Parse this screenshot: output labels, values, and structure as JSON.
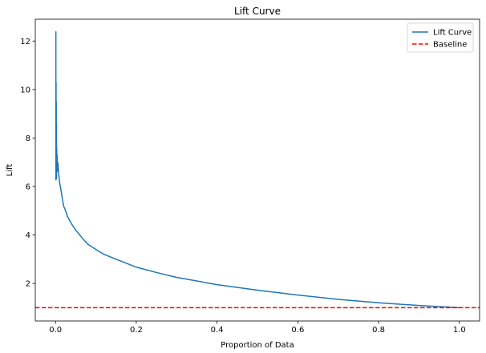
{
  "chart_data": {
    "type": "line",
    "title": "Lift Curve",
    "xlabel": "Proportion of Data",
    "ylabel": "Lift",
    "xlim": [
      -0.05,
      1.05
    ],
    "ylim": [
      0.45,
      12.9
    ],
    "xticks": [
      0.0,
      0.2,
      0.4,
      0.6,
      0.8,
      1.0
    ],
    "xtick_labels": [
      "0.0",
      "0.2",
      "0.4",
      "0.6",
      "0.8",
      "1.0"
    ],
    "yticks": [
      2,
      4,
      6,
      8,
      10,
      12
    ],
    "ytick_labels": [
      "2",
      "4",
      "6",
      "8",
      "10",
      "12"
    ],
    "grid": false,
    "legend_position": "top-right",
    "series": [
      {
        "name": "Lift Curve",
        "style": "solid",
        "color": "#1f77b4",
        "x": [
          0.001,
          0.001,
          0.0015,
          0.0015,
          0.002,
          0.002,
          0.0025,
          0.0025,
          0.003,
          0.0035,
          0.004,
          0.005,
          0.006,
          0.008,
          0.01,
          0.015,
          0.02,
          0.025,
          0.03,
          0.04,
          0.05,
          0.06,
          0.07,
          0.08,
          0.1,
          0.12,
          0.15,
          0.2,
          0.25,
          0.3,
          0.4,
          0.5,
          0.6,
          0.7,
          0.8,
          0.9,
          1.0
        ],
        "y": [
          12.4,
          6.25,
          10.3,
          6.6,
          9.5,
          7.1,
          8.6,
          6.3,
          7.6,
          6.9,
          7.3,
          6.6,
          7.0,
          6.5,
          6.2,
          5.7,
          5.2,
          5.0,
          4.75,
          4.45,
          4.2,
          4.0,
          3.8,
          3.62,
          3.4,
          3.2,
          3.0,
          2.67,
          2.45,
          2.25,
          1.95,
          1.72,
          1.52,
          1.34,
          1.2,
          1.09,
          1.0
        ]
      },
      {
        "name": "Baseline",
        "style": "dashed",
        "color": "#ff0000",
        "x": [
          -0.05,
          1.05
        ],
        "y": [
          1.0,
          1.0
        ]
      }
    ]
  }
}
